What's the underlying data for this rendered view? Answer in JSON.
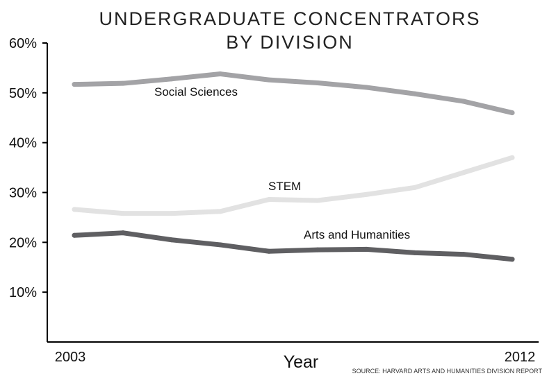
{
  "chart_data": {
    "type": "line",
    "title": [
      "UNDERGRADUATE CONCENTRATORS",
      "BY DIVISION"
    ],
    "xlabel": "Year",
    "ylabel": "",
    "x": [
      2003,
      2004,
      2005,
      2006,
      2007,
      2008,
      2009,
      2010,
      2011,
      2012
    ],
    "x_tick_labels": [
      "2003",
      "2012"
    ],
    "y_ticks": [
      10,
      20,
      30,
      40,
      50,
      60
    ],
    "y_tick_labels": [
      "10%",
      "20%",
      "30%",
      "40%",
      "50%",
      "60%"
    ],
    "ylim": [
      0,
      60
    ],
    "series": [
      {
        "name": "Social Sciences",
        "color": "#a3a3a6",
        "values": [
          51.7,
          51.9,
          52.8,
          53.8,
          52.6,
          52.0,
          51.1,
          49.8,
          48.3,
          46.0
        ]
      },
      {
        "name": "STEM",
        "color": "#e2e2e2",
        "values": [
          26.6,
          25.8,
          25.8,
          26.2,
          28.6,
          28.4,
          29.6,
          31.0,
          34.0,
          37.0
        ]
      },
      {
        "name": "Arts and Humanities",
        "color": "#5f5f62",
        "values": [
          21.4,
          21.9,
          20.5,
          19.5,
          18.2,
          18.5,
          18.6,
          17.9,
          17.6,
          16.6
        ]
      }
    ],
    "source": "SOURCE: HARVARD ARTS AND HUMANITIES DIVISION REPORT",
    "grid": false
  }
}
